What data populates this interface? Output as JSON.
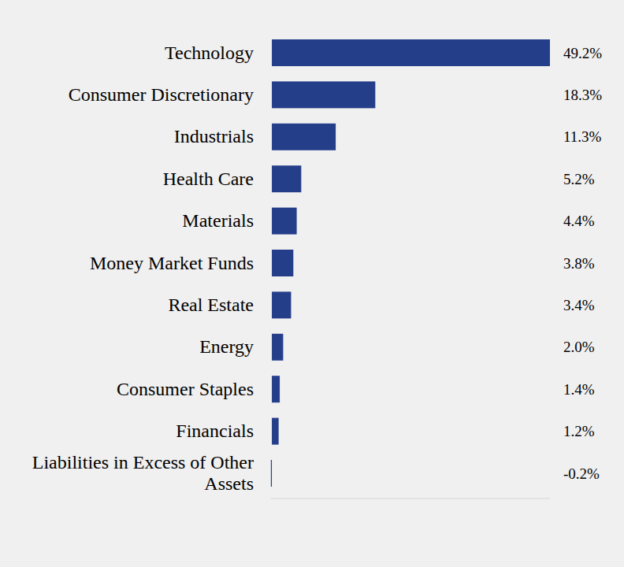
{
  "chart_data": {
    "type": "bar",
    "orientation": "horizontal",
    "categories": [
      "Technology",
      "Consumer Discretionary",
      "Industrials",
      "Health Care",
      "Materials",
      "Money Market Funds",
      "Real Estate",
      "Energy",
      "Consumer Staples",
      "Financials",
      "Liabilities in Excess of Other Assets"
    ],
    "values": [
      49.2,
      18.3,
      11.3,
      5.2,
      4.4,
      3.8,
      3.4,
      2.0,
      1.4,
      1.2,
      -0.2
    ],
    "value_labels": [
      "49.2%",
      "18.3%",
      "11.3%",
      "5.2%",
      "4.4%",
      "3.8%",
      "3.4%",
      "2.0%",
      "1.4%",
      "1.2%",
      "-0.2%"
    ],
    "color": "#253e8a",
    "xlim": [
      -0.2,
      49.2
    ],
    "data_labels": true,
    "tick_labels": false,
    "grid": false
  }
}
